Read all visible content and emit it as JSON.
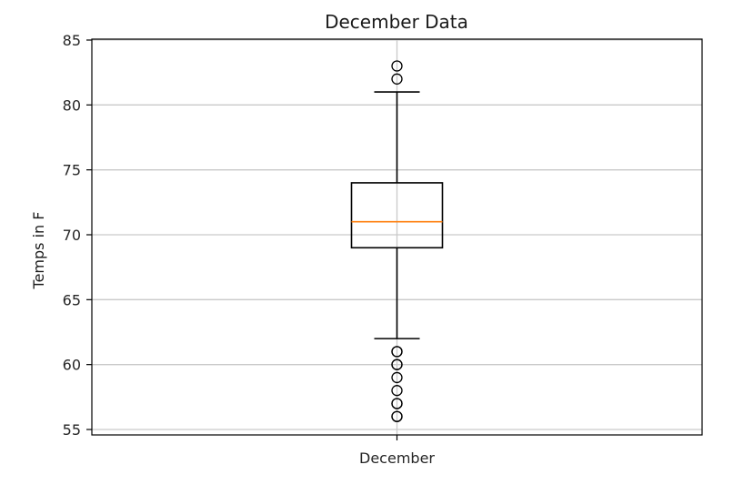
{
  "chart_data": {
    "type": "box",
    "title": "December Data",
    "ylabel": "Temps in F",
    "xlabel": "",
    "categories": [
      "December"
    ],
    "ylim": [
      55,
      85
    ],
    "yticks": [
      55,
      60,
      65,
      70,
      75,
      80,
      85
    ],
    "grid": true,
    "boxes": [
      {
        "name": "December",
        "whisker_low": 62,
        "q1": 69,
        "median": 71,
        "q3": 74,
        "whisker_high": 81,
        "outliers": [
          56,
          56,
          57,
          57,
          58,
          59,
          60,
          60,
          61,
          61,
          82,
          83
        ]
      }
    ],
    "colors": {
      "median": "#ff7f0e",
      "box": "#000000",
      "grid": "#c9c9c9"
    }
  }
}
